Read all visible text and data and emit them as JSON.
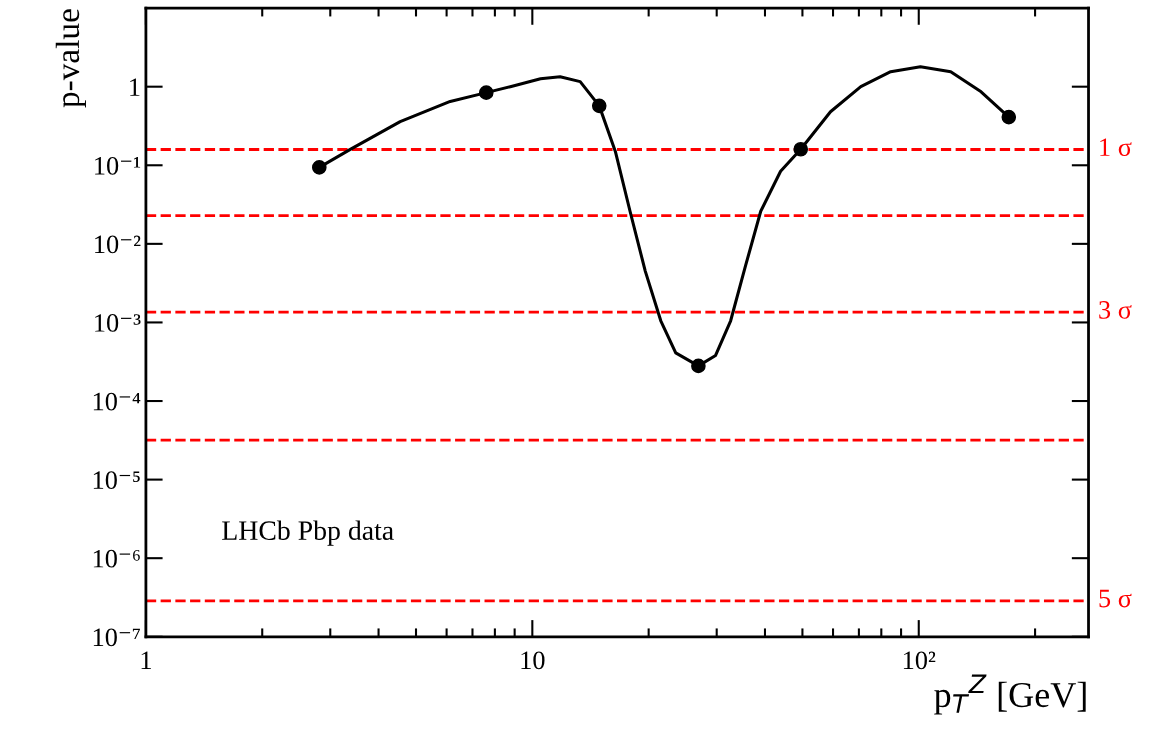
{
  "chart_data": {
    "type": "scatter",
    "ylabel": "p-value",
    "xlabel": "p$_{T}$$^{Z}$ [GeV]",
    "log": "xy",
    "xlim": [
      1,
      275
    ],
    "ylim": [
      1e-07,
      10
    ],
    "xticks": [
      1,
      10,
      {
        "value": 100,
        "label": "10²"
      }
    ],
    "yticks": [
      {
        "value": 1e-07,
        "label": "10⁻⁷"
      },
      {
        "value": 1e-06,
        "label": "10⁻⁶"
      },
      {
        "value": 1e-05,
        "label": "10⁻⁵"
      },
      {
        "value": 0.0001,
        "label": "10⁻⁴"
      },
      {
        "value": 0.001,
        "label": "10⁻³"
      },
      {
        "value": 0.01,
        "label": "10⁻²"
      },
      {
        "value": 0.1,
        "label": "10⁻¹"
      },
      1
    ],
    "grid": false,
    "legend": false,
    "marker": "circle",
    "series": [
      {
        "type": "line",
        "color": "#000000",
        "marker": "none",
        "x": [
          2.81,
          3.38,
          4.55,
          6.13,
          7.6,
          8.77,
          10.5,
          11.8,
          13.3,
          14.9,
          16.4,
          17.9,
          19.6,
          21.5,
          23.5,
          26.9,
          29.8,
          32.6,
          35.6,
          39.0,
          43.9,
          49.5,
          59.1,
          70.8,
          84.6,
          101,
          121,
          145,
          171
        ],
        "values": [
          0.094,
          0.159,
          0.36,
          0.65,
          0.84,
          1.0,
          1.26,
          1.34,
          1.16,
          0.57,
          0.15,
          0.026,
          0.0045,
          0.00105,
          0.00041,
          0.00028,
          0.00038,
          0.00105,
          0.0052,
          0.026,
          0.084,
          0.16,
          0.48,
          1.0,
          1.55,
          1.79,
          1.55,
          0.86,
          0.41
        ]
      },
      {
        "color": "#000000",
        "x": [
          2.81,
          7.6,
          14.9,
          26.9,
          49.5,
          171
        ],
        "values": [
          0.094,
          0.84,
          0.57,
          0.00028,
          0.16,
          0.41
        ]
      }
    ],
    "ref_lines": [
      {
        "axis": "y",
        "value": 0.1587,
        "label": "1 σ",
        "color": "#ff0000",
        "line_style": "dashed"
      },
      {
        "axis": "y",
        "value": 0.0228,
        "label": null,
        "color": "#ff0000",
        "line_style": "dashed"
      },
      {
        "axis": "y",
        "value": 0.00135,
        "label": "3 σ",
        "color": "#ff0000",
        "line_style": "dashed"
      },
      {
        "axis": "y",
        "value": 3.17e-05,
        "label": null,
        "color": "#ff0000",
        "line_style": "dashed"
      },
      {
        "axis": "y",
        "value": 2.87e-07,
        "label": "5 σ",
        "color": "#ff0000",
        "line_style": "dashed"
      }
    ],
    "annotations": [
      "LHCb Pbp data"
    ]
  }
}
